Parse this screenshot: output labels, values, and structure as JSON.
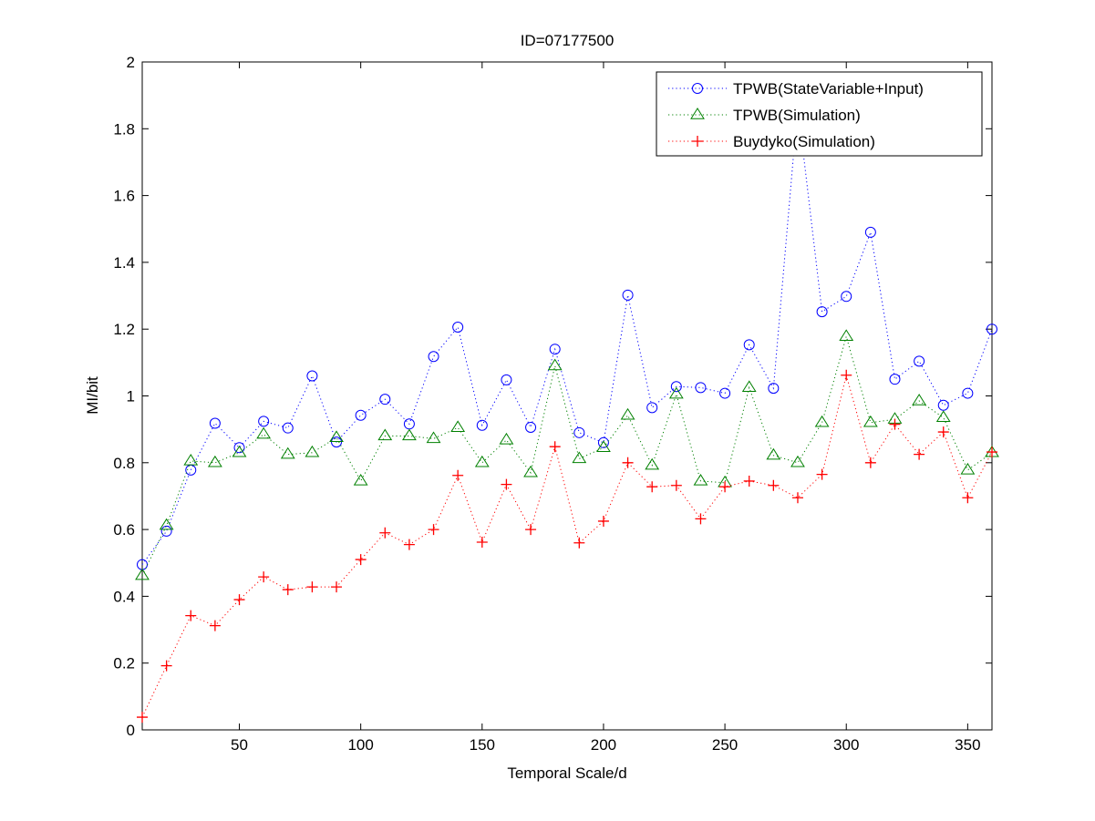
{
  "chart_data": {
    "type": "line",
    "title": "ID=07177500",
    "xlabel": "Temporal Scale/d",
    "ylabel": "MI/bit",
    "xlim": [
      10,
      360
    ],
    "ylim": [
      0,
      2
    ],
    "xticks": [
      50,
      100,
      150,
      200,
      250,
      300,
      350
    ],
    "yticks": [
      0,
      0.2,
      0.4,
      0.6,
      0.8,
      1,
      1.2,
      1.4,
      1.6,
      1.8,
      2
    ],
    "ytick_labels": [
      "0",
      "0.2",
      "0.4",
      "0.6",
      "0.8",
      "1",
      "1.2",
      "1.4",
      "1.6",
      "1.8",
      "2"
    ],
    "grid": false,
    "legend_position": "top-right",
    "x": [
      10,
      20,
      30,
      40,
      50,
      60,
      70,
      80,
      90,
      100,
      110,
      120,
      130,
      140,
      150,
      160,
      170,
      180,
      190,
      200,
      210,
      220,
      230,
      240,
      250,
      260,
      270,
      280,
      290,
      300,
      310,
      320,
      330,
      340,
      350,
      360
    ],
    "series": [
      {
        "name": "TPWB(StateVariable+Input)",
        "color": "#0000ff",
        "marker": "circle",
        "values": [
          0.495,
          0.595,
          0.778,
          0.918,
          0.845,
          0.924,
          0.904,
          1.06,
          0.862,
          0.942,
          0.99,
          0.916,
          1.118,
          1.206,
          0.912,
          1.048,
          0.906,
          1.14,
          0.89,
          0.86,
          1.302,
          0.965,
          1.028,
          1.025,
          1.008,
          1.153,
          1.023,
          1.868,
          1.252,
          1.298,
          1.49,
          1.05,
          1.104,
          0.972,
          1.008,
          1.2
        ]
      },
      {
        "name": "TPWB(Simulation)",
        "color": "#008000",
        "marker": "triangle",
        "values": [
          0.462,
          0.612,
          0.805,
          0.8,
          0.83,
          0.885,
          0.825,
          0.83,
          0.875,
          0.745,
          0.88,
          0.88,
          0.872,
          0.905,
          0.8,
          0.868,
          0.77,
          1.09,
          0.812,
          0.845,
          0.942,
          0.792,
          1.005,
          0.745,
          0.74,
          1.025,
          0.822,
          0.8,
          0.92,
          1.178,
          0.92,
          0.93,
          0.985,
          0.935,
          0.778,
          0.83
        ]
      },
      {
        "name": "Buydyko(Simulation)",
        "color": "#ff0000",
        "marker": "plus",
        "values": [
          0.038,
          0.192,
          0.342,
          0.312,
          0.39,
          0.458,
          0.42,
          0.428,
          0.428,
          0.51,
          0.59,
          0.555,
          0.6,
          0.762,
          0.562,
          0.735,
          0.6,
          0.848,
          0.56,
          0.625,
          0.8,
          0.728,
          0.732,
          0.632,
          0.728,
          0.745,
          0.732,
          0.695,
          0.765,
          1.062,
          0.8,
          0.915,
          0.825,
          0.892,
          0.695,
          0.832
        ]
      }
    ]
  }
}
